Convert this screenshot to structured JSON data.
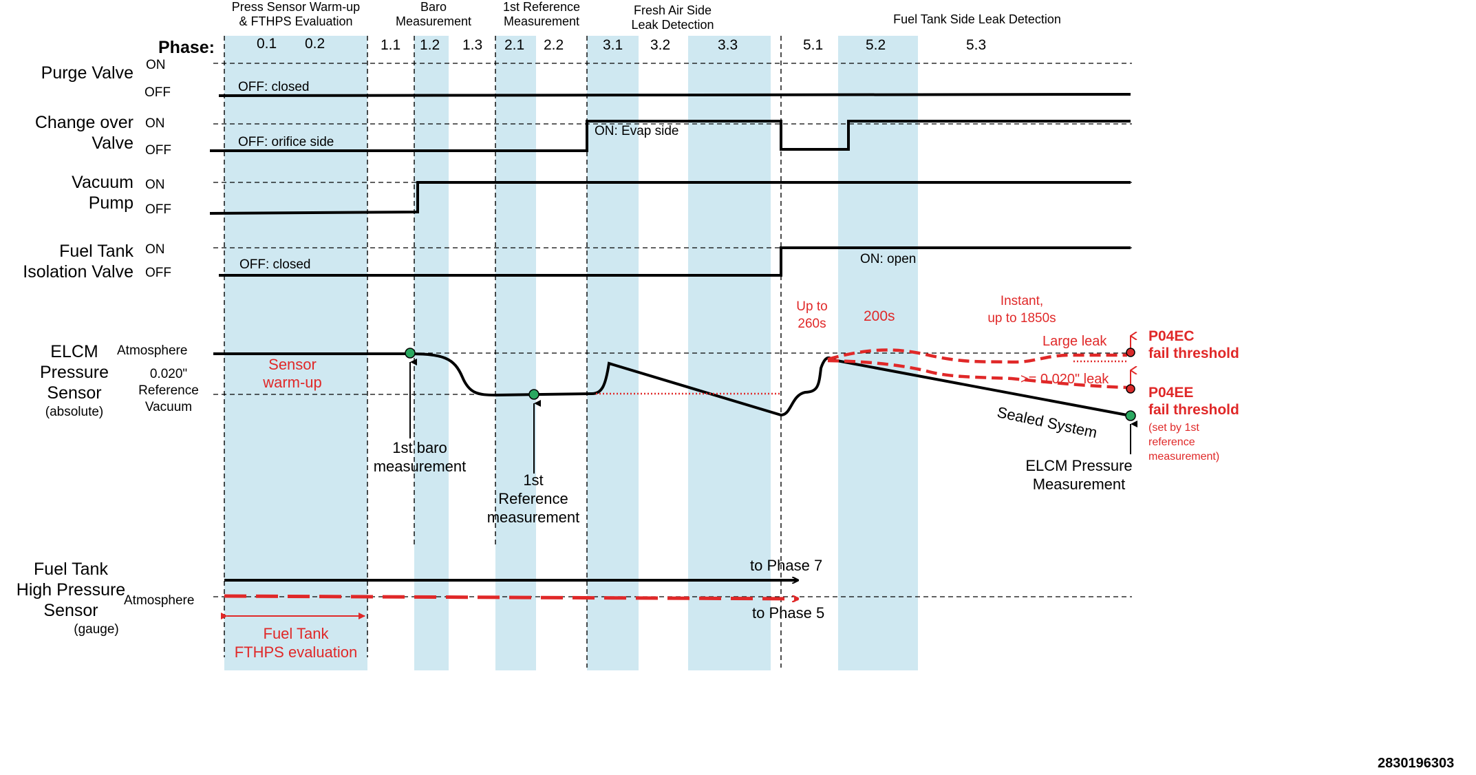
{
  "colors": {
    "band": "#cfe8f1",
    "trace": "#000000",
    "alert": "#e02828",
    "marker_green": "#2aa860",
    "marker_red": "#d92b2b"
  },
  "groups": {
    "g0": [
      "Press Sensor Warm-up",
      "& FTHPS Evaluation"
    ],
    "g1": [
      "Baro",
      "Measurement"
    ],
    "g2": [
      "1st Reference",
      "Measurement"
    ],
    "g3": [
      "Fresh Air Side",
      "Leak Detection"
    ],
    "g5": "Fuel Tank Side Leak Detection"
  },
  "phase_label": "Phase:",
  "phases": [
    "0.1",
    "0.2",
    "1.1",
    "1.2",
    "1.3",
    "2.1",
    "2.2",
    "3.1",
    "3.2",
    "3.3",
    "5.1",
    "5.2",
    "5.3"
  ],
  "signals": {
    "purge": {
      "name": "Purge Valve",
      "on": "ON",
      "off": "OFF",
      "state": "OFF: closed"
    },
    "changeover": {
      "name": [
        "Change over",
        "Valve"
      ],
      "on": "ON",
      "off": "OFF",
      "state_off": "OFF: orifice side",
      "state_on": "ON: Evap side"
    },
    "pump": {
      "name": [
        "Vacuum",
        "Pump"
      ],
      "on": "ON",
      "off": "OFF"
    },
    "ftiv": {
      "name": [
        "Fuel Tank",
        "Isolation Valve"
      ],
      "on": "ON",
      "off": "OFF",
      "state_off": "OFF: closed",
      "state_on": "ON: open"
    }
  },
  "elcm": {
    "name": [
      "ELCM",
      "Pressure",
      "Sensor"
    ],
    "sub": "(absolute)",
    "atm": "Atmosphere",
    "ref": [
      "0.020\"",
      "Reference",
      "Vacuum"
    ],
    "warmup": [
      "Sensor",
      "warm-up"
    ],
    "baro": [
      "1st baro",
      "measurement"
    ],
    "refmeas": [
      "1st",
      "Reference",
      "measurement"
    ],
    "t51": [
      "Up to",
      "260s"
    ],
    "t52": "200s",
    "t53": [
      "Instant,",
      "up to 1850s"
    ],
    "large_leak": "Large leak",
    "small_leak": ">= 0.020\" leak",
    "p04ec": [
      "P04EC",
      "fail threshold"
    ],
    "p04ee": [
      "P04EE",
      "fail threshold"
    ],
    "p04ee_note": [
      "(set by 1st",
      "reference",
      "measurement)"
    ],
    "sealed": "Sealed System",
    "meas": [
      "ELCM Pressure",
      "Measurement"
    ]
  },
  "fthps": {
    "name": [
      "Fuel Tank",
      "High Pressure",
      "Sensor"
    ],
    "sub": "(gauge)",
    "atm": "Atmosphere",
    "to7": "to Phase 7",
    "to5": "to Phase 5",
    "eval": [
      "Fuel Tank",
      "FTHPS evaluation"
    ]
  },
  "figure_id": "2830196303"
}
